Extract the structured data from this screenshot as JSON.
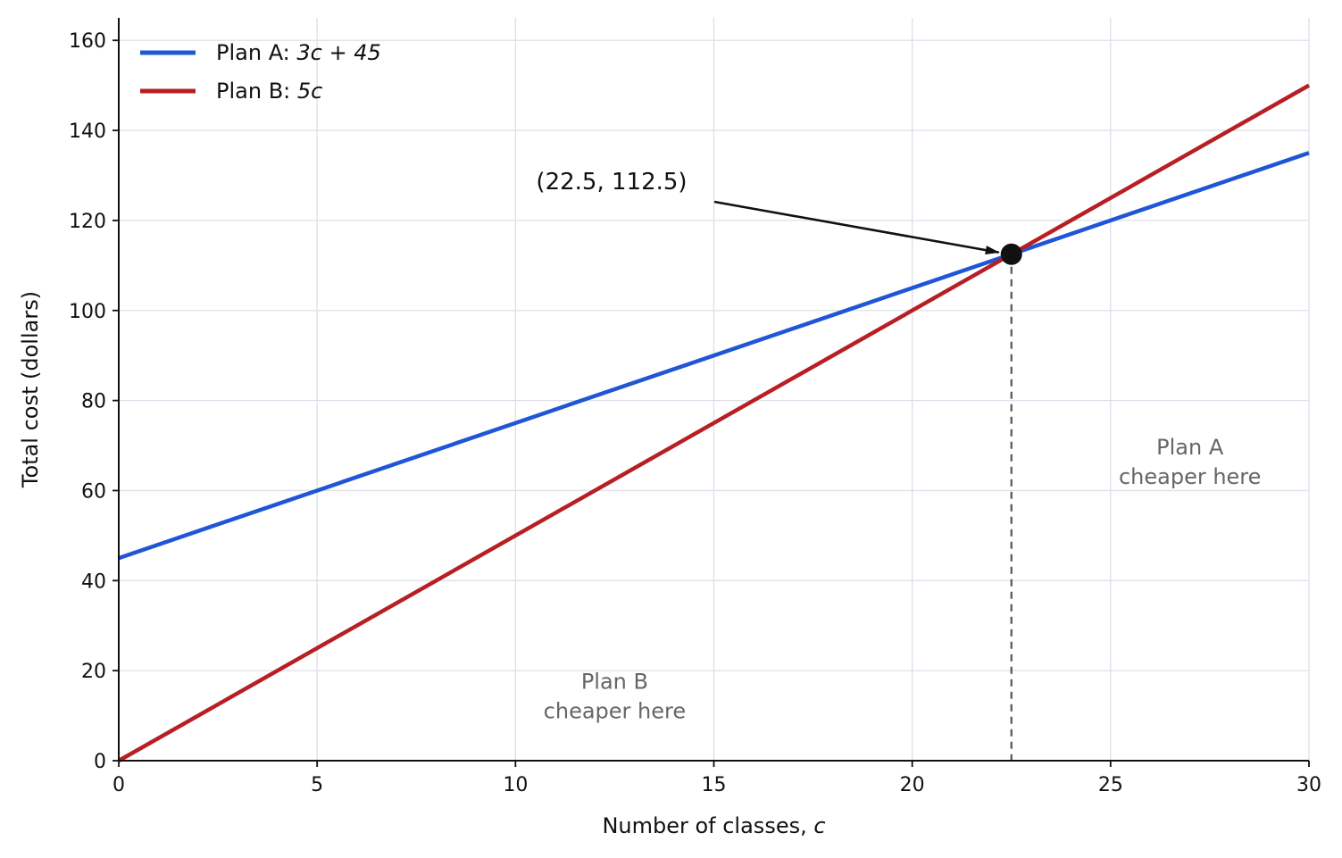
{
  "chart_data": {
    "type": "line",
    "xlabel": "Number of classes, ",
    "xlabel_var": "c",
    "ylabel": "Total cost (dollars)",
    "xlim": [
      0,
      30
    ],
    "ylim": [
      0,
      165
    ],
    "xticks": [
      0,
      5,
      10,
      15,
      20,
      25,
      30
    ],
    "yticks": [
      0,
      20,
      40,
      60,
      80,
      100,
      120,
      140,
      160
    ],
    "grid": true,
    "legend_position": "top-left",
    "series": [
      {
        "name": "Plan A: ",
        "name_expr": "3c + 45",
        "color": "#1f56d6",
        "x": [
          0,
          30
        ],
        "y": [
          45,
          135
        ]
      },
      {
        "name": "Plan B: ",
        "name_expr": "5c",
        "color": "#b71f24",
        "x": [
          0,
          30
        ],
        "y": [
          0,
          150
        ]
      }
    ],
    "intersection": {
      "x": 22.5,
      "y": 112.5,
      "label": "(22.5,  112.5)"
    },
    "regions": [
      {
        "line1": "Plan B",
        "line2": "cheaper here",
        "x": 12.5,
        "y": 16
      },
      {
        "line1": "Plan A",
        "line2": "cheaper here",
        "x": 27.0,
        "y": 68
      }
    ]
  }
}
